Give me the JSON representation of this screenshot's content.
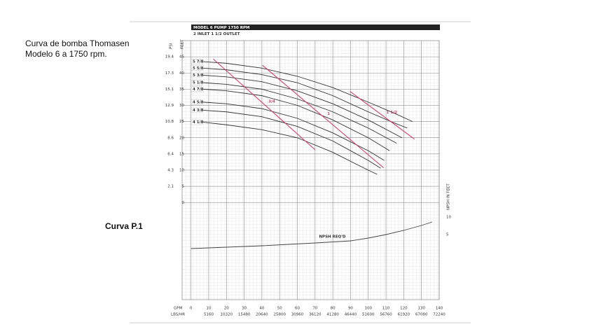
{
  "slide": {
    "caption_lines": [
      "Curva de bomba Thomasen",
      "Modelo 6 a 1750 rpm."
    ],
    "figure_label": "Curva P.1"
  },
  "chart_data": {
    "type": "line",
    "title": "MODEL 6 PUMP 1750 RPM",
    "subtitle": "2 INLET  1 1/2 OUTLET",
    "x_label": "GPM",
    "x2_label": "LBS/HR",
    "y_label": "FEET",
    "y_psi_label": "PSI",
    "y2_label": "NPSH IN FEET",
    "xlim": [
      -5,
      140
    ],
    "ylim": [
      -30,
      50
    ],
    "y2lim": [
      -13.6,
      60.4
    ],
    "xticks": [
      0,
      10,
      20,
      30,
      40,
      50,
      60,
      70,
      80,
      90,
      100,
      110,
      120,
      130,
      140
    ],
    "lbs_ticks": [
      {
        "value": 10,
        "label": "5160"
      },
      {
        "value": 20,
        "label": "10320"
      },
      {
        "value": 30,
        "label": "15480"
      },
      {
        "value": 40,
        "label": "20640"
      },
      {
        "value": 50,
        "label": "25800"
      },
      {
        "value": 60,
        "label": "30960"
      },
      {
        "value": 70,
        "label": "36120"
      },
      {
        "value": 80,
        "label": "41280"
      },
      {
        "value": 90,
        "label": "46440"
      },
      {
        "value": 100,
        "label": "51600"
      },
      {
        "value": 110,
        "label": "56760"
      },
      {
        "value": 120,
        "label": "61920"
      },
      {
        "value": 130,
        "label": "67080"
      },
      {
        "value": 140,
        "label": "72240"
      }
    ],
    "yticks": [
      0,
      5,
      10,
      15,
      20,
      25,
      30,
      35,
      40,
      45
    ],
    "psi_ticks": [
      {
        "value": 5,
        "label": "2.1"
      },
      {
        "value": 10,
        "label": "4.3"
      },
      {
        "value": 15,
        "label": "6.4"
      },
      {
        "value": 20,
        "label": "8.6"
      },
      {
        "value": 25,
        "label": "10.8"
      },
      {
        "value": 30,
        "label": "12.9"
      },
      {
        "value": 35,
        "label": "15.1"
      },
      {
        "value": 40,
        "label": "17.3"
      },
      {
        "value": 45,
        "label": "19.4"
      }
    ],
    "y2ticks": [
      5,
      10
    ],
    "grid": true,
    "series": [
      {
        "name": "5 7/8",
        "color": "#333333",
        "x": [
          7,
          20,
          40,
          60,
          80,
          100,
          115,
          125
        ],
        "values": [
          43.5,
          43,
          41.5,
          39,
          35.5,
          31,
          27.5,
          25
        ]
      },
      {
        "name": "5 5/8",
        "color": "#333333",
        "x": [
          7,
          20,
          40,
          60,
          80,
          100,
          115,
          122
        ],
        "values": [
          41.5,
          41,
          39.5,
          37,
          33,
          28,
          24.5,
          23
        ]
      },
      {
        "name": "5 3/8",
        "color": "#333333",
        "x": [
          7,
          20,
          40,
          60,
          80,
          100,
          119
        ],
        "values": [
          39.3,
          38.8,
          37.3,
          34.5,
          30.5,
          25.5,
          20
        ]
      },
      {
        "name": "5 1/8",
        "color": "#333333",
        "x": [
          7,
          20,
          40,
          60,
          80,
          100,
          116
        ],
        "values": [
          37,
          36.5,
          35,
          32,
          28,
          23,
          18.3
        ]
      },
      {
        "name": "4 7/8",
        "color": "#333333",
        "x": [
          7,
          20,
          40,
          60,
          80,
          100,
          112
        ],
        "values": [
          35,
          34.5,
          33,
          30,
          25.5,
          20,
          16
        ]
      },
      {
        "name": "4 5/8",
        "color": "#333333",
        "x": [
          7,
          20,
          40,
          60,
          80,
          100,
          109
        ],
        "values": [
          31,
          30.5,
          29,
          26,
          21.5,
          16,
          13
        ]
      },
      {
        "name": "4 3/8",
        "color": "#333333",
        "x": [
          7,
          20,
          40,
          60,
          80,
          100,
          107
        ],
        "values": [
          28.5,
          28,
          26.5,
          23.5,
          19,
          13,
          10.6
        ]
      },
      {
        "name": "4 1/8",
        "color": "#333333",
        "x": [
          7,
          20,
          40,
          60,
          80,
          100,
          105
        ],
        "values": [
          24.8,
          24,
          22.5,
          20,
          15.5,
          10,
          8.7
        ]
      },
      {
        "name": "NPSH REQ'D",
        "color": "#444444",
        "axis": "y2",
        "x": [
          0,
          40,
          70,
          90,
          100,
          110,
          120,
          130,
          136
        ],
        "values": [
          1,
          1.8,
          2.6,
          3.2,
          4,
          5,
          6.2,
          7.6,
          8.6
        ]
      }
    ],
    "power_lines": [
      {
        "name": "3/4",
        "color": "#d0406a",
        "x": [
          12.6,
          70
        ],
        "values": [
          44.3,
          16.3
        ]
      },
      {
        "name": "1",
        "color": "#d0406a",
        "x": [
          40.3,
          108.7
        ],
        "values": [
          42.4,
          10.7
        ]
      },
      {
        "name": "1 1/2",
        "color": "#d0406a",
        "x": [
          89.7,
          126
        ],
        "values": [
          34.3,
          19.6
        ]
      }
    ]
  }
}
